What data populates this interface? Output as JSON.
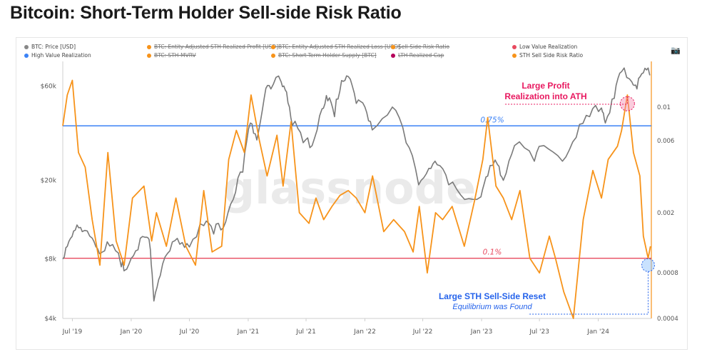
{
  "title": "Bitcoin: Short-Term Holder Sell-side Risk Ratio",
  "legend": [
    {
      "label": "BTC: Price [USD]",
      "color": "#888888",
      "struck": false
    },
    {
      "label": "BTC: Entity-Adjusted STH Realized Profit [USD]",
      "color": "#f7931a",
      "struck": true
    },
    {
      "label": "BTC: Entity-Adjusted STH Realized Loss [USD]",
      "color": "#f7931a",
      "struck": true
    },
    {
      "label": "Sell-Side Risk Ratio",
      "color": "#f7931a",
      "struck": true
    },
    {
      "label": "Low Value Realization",
      "color": "#e84a5f",
      "struck": false
    },
    {
      "label": "High Value Realization",
      "color": "#3b82f6",
      "struck": false
    },
    {
      "label": "BTC: STH-MVRV",
      "color": "#f7931a",
      "struck": true
    },
    {
      "label": "BTC: Short-Term Holder Supply [BTC]",
      "color": "#f7931a",
      "struck": true
    },
    {
      "label": "LTH Realized Cap",
      "color": "#b5005b",
      "struck": true
    },
    {
      "label": "STH Sell Side Risk Ratio",
      "color": "#f7931a",
      "struck": false
    }
  ],
  "watermark": "glassnode",
  "camera_icon": "camera-icon",
  "annotations": {
    "profit_line1": "Large Profit",
    "profit_line2": "Realization into ATH",
    "reset_line1": "Large STH Sell-Side Reset",
    "reset_line2": "Equilibrium was Found",
    "high_label": "0.75%",
    "low_label": "0.1%"
  },
  "chart_data": {
    "type": "line",
    "x_ticks": [
      "Jul '19",
      "Jan '20",
      "Jul '20",
      "Jan '21",
      "Jul '21",
      "Jan '22",
      "Jul '22",
      "Jan '23",
      "Jul '23",
      "Jan '24"
    ],
    "y_left_ticks": [
      "$60k",
      "$20k",
      "$8k",
      "$4k"
    ],
    "y_right_ticks": [
      "0.01",
      "0.006",
      "0.002",
      "0.0008",
      "0.0004"
    ],
    "left_axis_scale": "log",
    "right_axis_scale": "log",
    "ylim_left": [
      4000,
      80000
    ],
    "ylim_right": [
      0.0004,
      0.02
    ],
    "grid": false,
    "colors": {
      "price": "#7a7a7a",
      "ratio": "#f7931a",
      "high": "#3b82f6",
      "low": "#e84a5f",
      "profit_annot": "#e8185f",
      "reset_annot": "#2563eb"
    },
    "thresholds": [
      {
        "name": "High Value Realization",
        "value": 0.0075
      },
      {
        "name": "Low Value Realization",
        "value": 0.001
      }
    ],
    "series": [
      {
        "name": "BTC: Price [USD]",
        "axis": "left",
        "x": [
          "2019-06-01",
          "2019-06-20",
          "2019-07-10",
          "2019-08-01",
          "2019-09-01",
          "2019-09-24",
          "2019-10-26",
          "2019-12-01",
          "2019-12-18",
          "2020-01-15",
          "2020-02-13",
          "2020-03-01",
          "2020-03-12",
          "2020-04-01",
          "2020-05-01",
          "2020-06-01",
          "2020-07-01",
          "2020-08-15",
          "2020-09-15",
          "2020-10-15",
          "2020-11-15",
          "2020-12-15",
          "2021-01-08",
          "2021-01-28",
          "2021-02-20",
          "2021-03-13",
          "2021-04-14",
          "2021-05-01",
          "2021-05-19",
          "2021-06-22",
          "2021-07-20",
          "2021-08-20",
          "2021-09-07",
          "2021-09-28",
          "2021-10-20",
          "2021-11-10",
          "2021-12-05",
          "2022-01-01",
          "2022-01-24",
          "2022-03-28",
          "2022-05-10",
          "2022-06-18",
          "2022-07-20",
          "2022-08-15",
          "2022-09-20",
          "2022-11-09",
          "2022-12-30",
          "2023-01-20",
          "2023-02-20",
          "2023-03-10",
          "2023-04-14",
          "2023-06-15",
          "2023-07-15",
          "2023-09-11",
          "2023-10-24",
          "2023-12-05",
          "2024-01-11",
          "2024-01-23",
          "2024-02-20",
          "2024-03-14",
          "2024-04-15",
          "2024-05-01",
          "2024-05-21",
          "2024-06-10"
        ],
        "values": [
          8000,
          9800,
          11200,
          11000,
          10200,
          8500,
          9300,
          7300,
          7100,
          8800,
          10300,
          8900,
          4900,
          6600,
          8800,
          9500,
          9200,
          11800,
          10700,
          11500,
          16000,
          22000,
          39000,
          32000,
          52000,
          58000,
          63000,
          56000,
          38000,
          31000,
          30000,
          46000,
          50500,
          42000,
          64000,
          67000,
          49000,
          47000,
          36000,
          47000,
          31000,
          19000,
          23000,
          24000,
          19000,
          16000,
          16500,
          21000,
          24000,
          20000,
          30000,
          25000,
          30000,
          25000,
          33000,
          42000,
          46500,
          39000,
          52000,
          71000,
          63000,
          58000,
          70000,
          68000
        ]
      },
      {
        "name": "STH Sell Side Risk Ratio",
        "axis": "right",
        "x": [
          "2019-06-01",
          "2019-06-15",
          "2019-07-01",
          "2019-07-20",
          "2019-08-10",
          "2019-09-01",
          "2019-09-25",
          "2019-10-20",
          "2019-11-15",
          "2019-12-10",
          "2020-01-05",
          "2020-02-10",
          "2020-03-05",
          "2020-03-20",
          "2020-04-20",
          "2020-05-20",
          "2020-06-20",
          "2020-07-20",
          "2020-08-15",
          "2020-09-10",
          "2020-10-10",
          "2020-11-01",
          "2020-11-25",
          "2020-12-20",
          "2021-01-10",
          "2021-02-05",
          "2021-03-01",
          "2021-04-01",
          "2021-04-20",
          "2021-05-15",
          "2021-06-10",
          "2021-07-10",
          "2021-08-01",
          "2021-08-25",
          "2021-09-20",
          "2021-10-15",
          "2021-11-10",
          "2021-12-05",
          "2022-01-01",
          "2022-01-25",
          "2022-03-01",
          "2022-04-01",
          "2022-05-05",
          "2022-06-01",
          "2022-06-20",
          "2022-07-15",
          "2022-08-10",
          "2022-09-01",
          "2022-10-01",
          "2022-11-08",
          "2022-12-10",
          "2023-01-05",
          "2023-01-20",
          "2023-02-15",
          "2023-03-10",
          "2023-04-05",
          "2023-05-01",
          "2023-06-01",
          "2023-07-01",
          "2023-08-01",
          "2023-08-20",
          "2023-09-15",
          "2023-10-15",
          "2023-11-15",
          "2023-12-15",
          "2024-01-11",
          "2024-02-01",
          "2024-03-01",
          "2024-03-14",
          "2024-04-01",
          "2024-04-20",
          "2024-05-10",
          "2024-05-21",
          "2024-06-05",
          "2024-06-12"
        ],
        "values": [
          0.0075,
          0.012,
          0.015,
          0.005,
          0.004,
          0.0018,
          0.0009,
          0.005,
          0.0013,
          0.0009,
          0.0025,
          0.003,
          0.0013,
          0.002,
          0.0012,
          0.0025,
          0.0012,
          0.0009,
          0.0028,
          0.0011,
          0.0012,
          0.0045,
          0.007,
          0.005,
          0.012,
          0.006,
          0.0035,
          0.0065,
          0.003,
          0.008,
          0.002,
          0.0017,
          0.0025,
          0.0018,
          0.0022,
          0.0026,
          0.0028,
          0.0025,
          0.002,
          0.0035,
          0.0015,
          0.0018,
          0.0015,
          0.0011,
          0.0022,
          0.0008,
          0.002,
          0.0018,
          0.0022,
          0.0012,
          0.0024,
          0.0045,
          0.0085,
          0.003,
          0.0025,
          0.0018,
          0.0028,
          0.001,
          0.0008,
          0.0014,
          0.001,
          0.0006,
          0.0004,
          0.0018,
          0.0038,
          0.0025,
          0.0045,
          0.0055,
          0.007,
          0.012,
          0.005,
          0.0035,
          0.0014,
          0.001,
          0.0012
        ]
      }
    ],
    "annotated_points": [
      {
        "name": "Large Profit Realization into ATH",
        "x": "2024-04-01",
        "y_ratio": 0.0105
      },
      {
        "name": "Large STH Sell-Side Reset",
        "x": "2024-06-05",
        "y_ratio": 0.0009
      }
    ],
    "x_start": "2019-06-01",
    "x_end": "2024-06-15"
  }
}
